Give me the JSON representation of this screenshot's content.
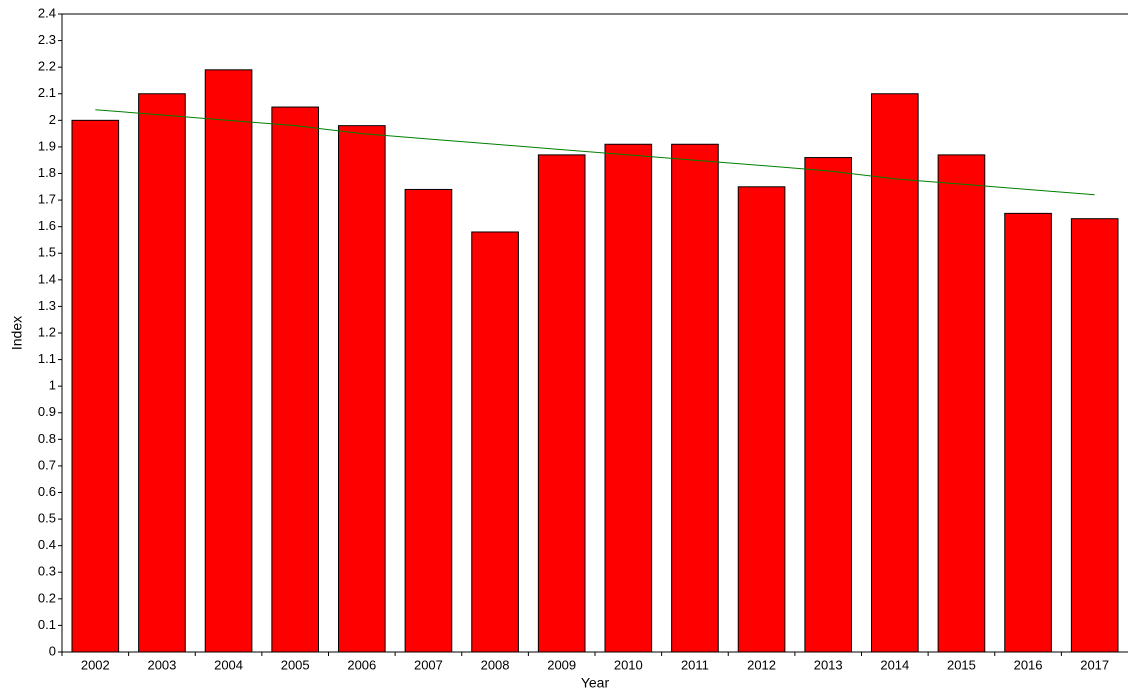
{
  "chart_data": {
    "type": "bar",
    "x_label": "Year",
    "y_label": "Index",
    "categories": [
      "2002",
      "2003",
      "2004",
      "2005",
      "2006",
      "2007",
      "2008",
      "2009",
      "2010",
      "2011",
      "2012",
      "2013",
      "2014",
      "2015",
      "2016",
      "2017"
    ],
    "values": [
      2.0,
      2.1,
      2.19,
      2.05,
      1.98,
      1.74,
      1.58,
      1.87,
      1.91,
      1.91,
      1.75,
      1.86,
      2.1,
      1.87,
      1.65,
      1.63
    ],
    "color": "#ff0000",
    "trend": {
      "color": "#008000",
      "values": [
        2.04,
        2.02,
        2.0,
        1.98,
        1.95,
        1.93,
        1.91,
        1.89,
        1.87,
        1.85,
        1.83,
        1.81,
        1.78,
        1.76,
        1.74,
        1.72
      ]
    },
    "ylim": [
      0,
      2.4
    ],
    "yticks": [
      0,
      0.1,
      0.2,
      0.3,
      0.4,
      0.5,
      0.6,
      0.7,
      0.8,
      0.9,
      1,
      1.1,
      1.2,
      1.3,
      1.4,
      1.5,
      1.6,
      1.7,
      1.8,
      1.9,
      2,
      2.1,
      2.2,
      2.3,
      2.4
    ],
    "grid": false
  }
}
